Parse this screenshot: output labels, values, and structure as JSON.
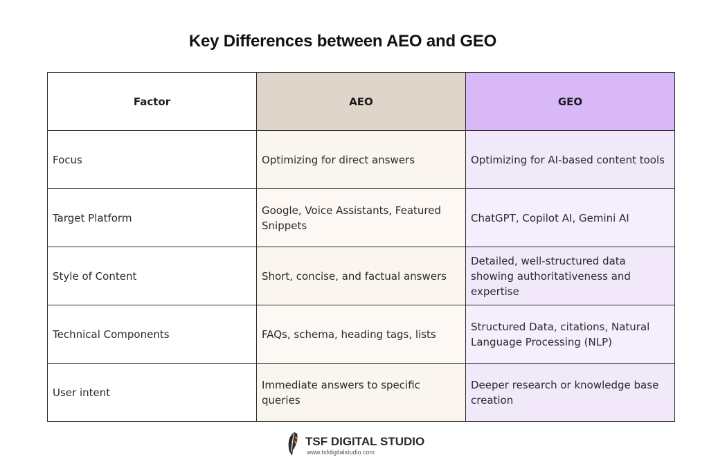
{
  "title": "Key Differences between AEO and GEO",
  "table": {
    "headers": [
      "Factor",
      "AEO",
      "GEO"
    ],
    "rows": [
      {
        "factor": "Focus",
        "aeo": "Optimizing for direct answers",
        "geo": "Optimizing for AI-based content tools"
      },
      {
        "factor": "Target Platform",
        "aeo": "Google, Voice Assistants, Featured Snippets",
        "geo": "ChatGPT, Copilot AI, Gemini AI"
      },
      {
        "factor": "Style of Content",
        "aeo": "Short, concise, and factual answers",
        "geo": "Detailed, well-structured data showing authoritativeness and expertise"
      },
      {
        "factor": "Technical Components",
        "aeo": "FAQs, schema, heading tags, lists",
        "geo": "Structured Data, citations, Natural Language Processing (NLP)"
      },
      {
        "factor": "User intent",
        "aeo": "Immediate answers to specific queries",
        "geo": "Deeper research or knowledge base creation"
      }
    ]
  },
  "colors": {
    "aeo_header": "#dfd5cb",
    "geo_header": "#d9b8f7",
    "aeo_cell": "#fdf8f3",
    "geo_cell": "#f5eefc"
  },
  "brand": {
    "name": "TSF DIGITAL STUDIO",
    "url": "www.tsfdigitalstudio.com",
    "logo_icon": "feather-logo-icon"
  }
}
